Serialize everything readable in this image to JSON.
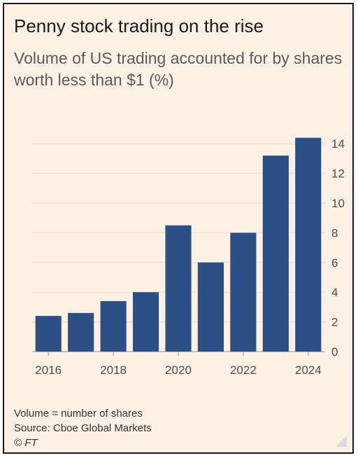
{
  "title": "Penny stock trading on the rise",
  "subtitle": "Volume of US trading accounted for by shares worth less than $1 (%)",
  "notes": {
    "definition": "Volume = number of shares",
    "source": "Source: Cboe Global Markets",
    "credit": "© FT"
  },
  "colors": {
    "bar": "#2c5086",
    "background": "#fdf1e6",
    "grid": "#e5dbd0"
  },
  "chart_data": {
    "type": "bar",
    "title": "Penny stock trading on the rise",
    "subtitle": "Volume of US trading accounted for by shares worth less than $1 (%)",
    "categories": [
      "2016",
      "2017",
      "2018",
      "2019",
      "2020",
      "2021",
      "2022",
      "2023",
      "2024"
    ],
    "x_tick_labels": [
      "2016",
      "2018",
      "2020",
      "2022",
      "2024"
    ],
    "values": [
      2.4,
      2.6,
      3.4,
      4.0,
      8.5,
      6.0,
      8.0,
      13.2,
      14.4
    ],
    "ylim": [
      0,
      15
    ],
    "y_ticks": [
      0,
      2,
      4,
      6,
      8,
      10,
      12,
      14
    ],
    "y_axis_side": "right",
    "grid": true,
    "xlabel": "",
    "ylabel": ""
  }
}
